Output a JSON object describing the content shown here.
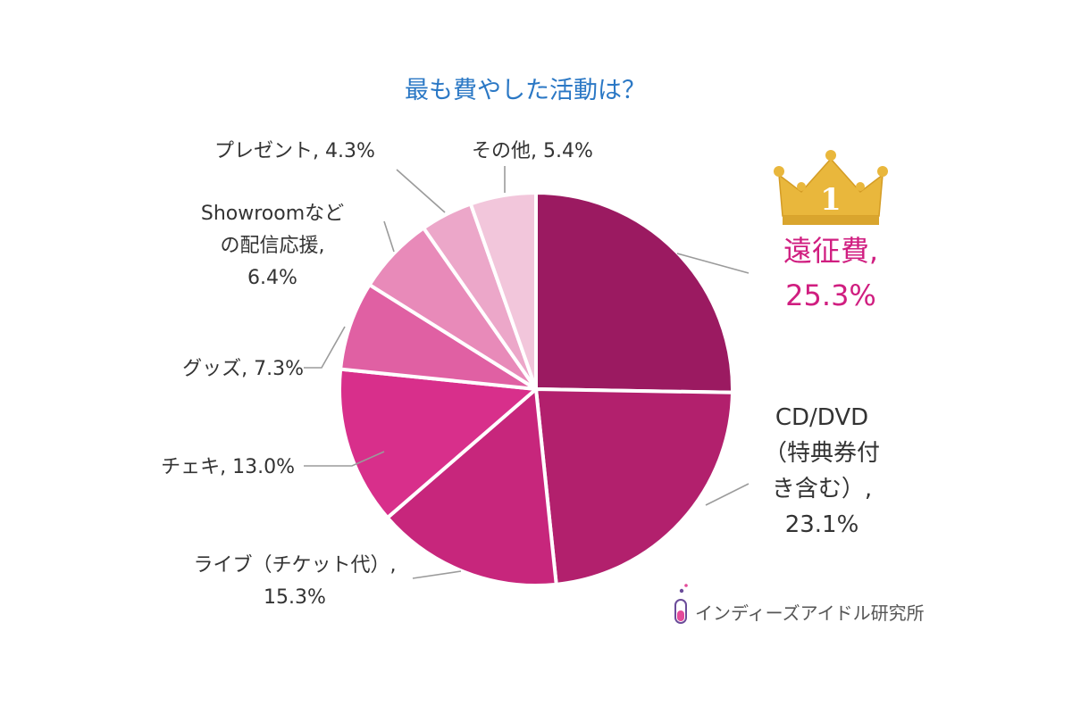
{
  "chart_data": {
    "type": "pie",
    "title": "最も費やした活動は？",
    "start_angle_deg": 0,
    "direction": "clockwise",
    "slices": [
      {
        "label_lines": [
          "遠征費,",
          "25.3%"
        ],
        "label": "遠征費",
        "value": 25.3,
        "color": "#9b1a61"
      },
      {
        "label_lines": [
          "CD/DVD",
          "（特典券付",
          "き含む）,",
          "23.1%"
        ],
        "label": "CD/DVD（特典券付き含む）",
        "value": 23.1,
        "color": "#b2206d"
      },
      {
        "label_lines": [
          "ライブ（チケット代）,",
          "15.3%"
        ],
        "label": "ライブ（チケット代）",
        "value": 15.3,
        "color": "#c7267c"
      },
      {
        "label_lines": [
          "チェキ, 13.0%"
        ],
        "label": "チェキ",
        "value": 13.0,
        "color": "#d82f8b"
      },
      {
        "label_lines": [
          "グッズ, 7.3%"
        ],
        "label": "グッズ",
        "value": 7.3,
        "color": "#e060a3"
      },
      {
        "label_lines": [
          "Showroomなど",
          "の配信応援,",
          "6.4%"
        ],
        "label": "Showroomなどの配信応援",
        "value": 6.4,
        "color": "#e88ab9"
      },
      {
        "label_lines": [
          "プレゼント, 4.3%"
        ],
        "label": "プレゼント",
        "value": 4.3,
        "color": "#eca7c9"
      },
      {
        "label_lines": [
          "その他, 5.4%"
        ],
        "label": "その他",
        "value": 5.4,
        "color": "#f2c6db"
      }
    ],
    "top_rank": "1",
    "top_rank_color": "#e9b73c"
  },
  "brand": {
    "name": "インディーズアイドル研究所",
    "icon": "test-tube-icon"
  },
  "colors": {
    "title": "#2b78c5",
    "top_label": "#d01e80",
    "leader_line": "#9b9b9b",
    "divider": "#ffffff"
  }
}
